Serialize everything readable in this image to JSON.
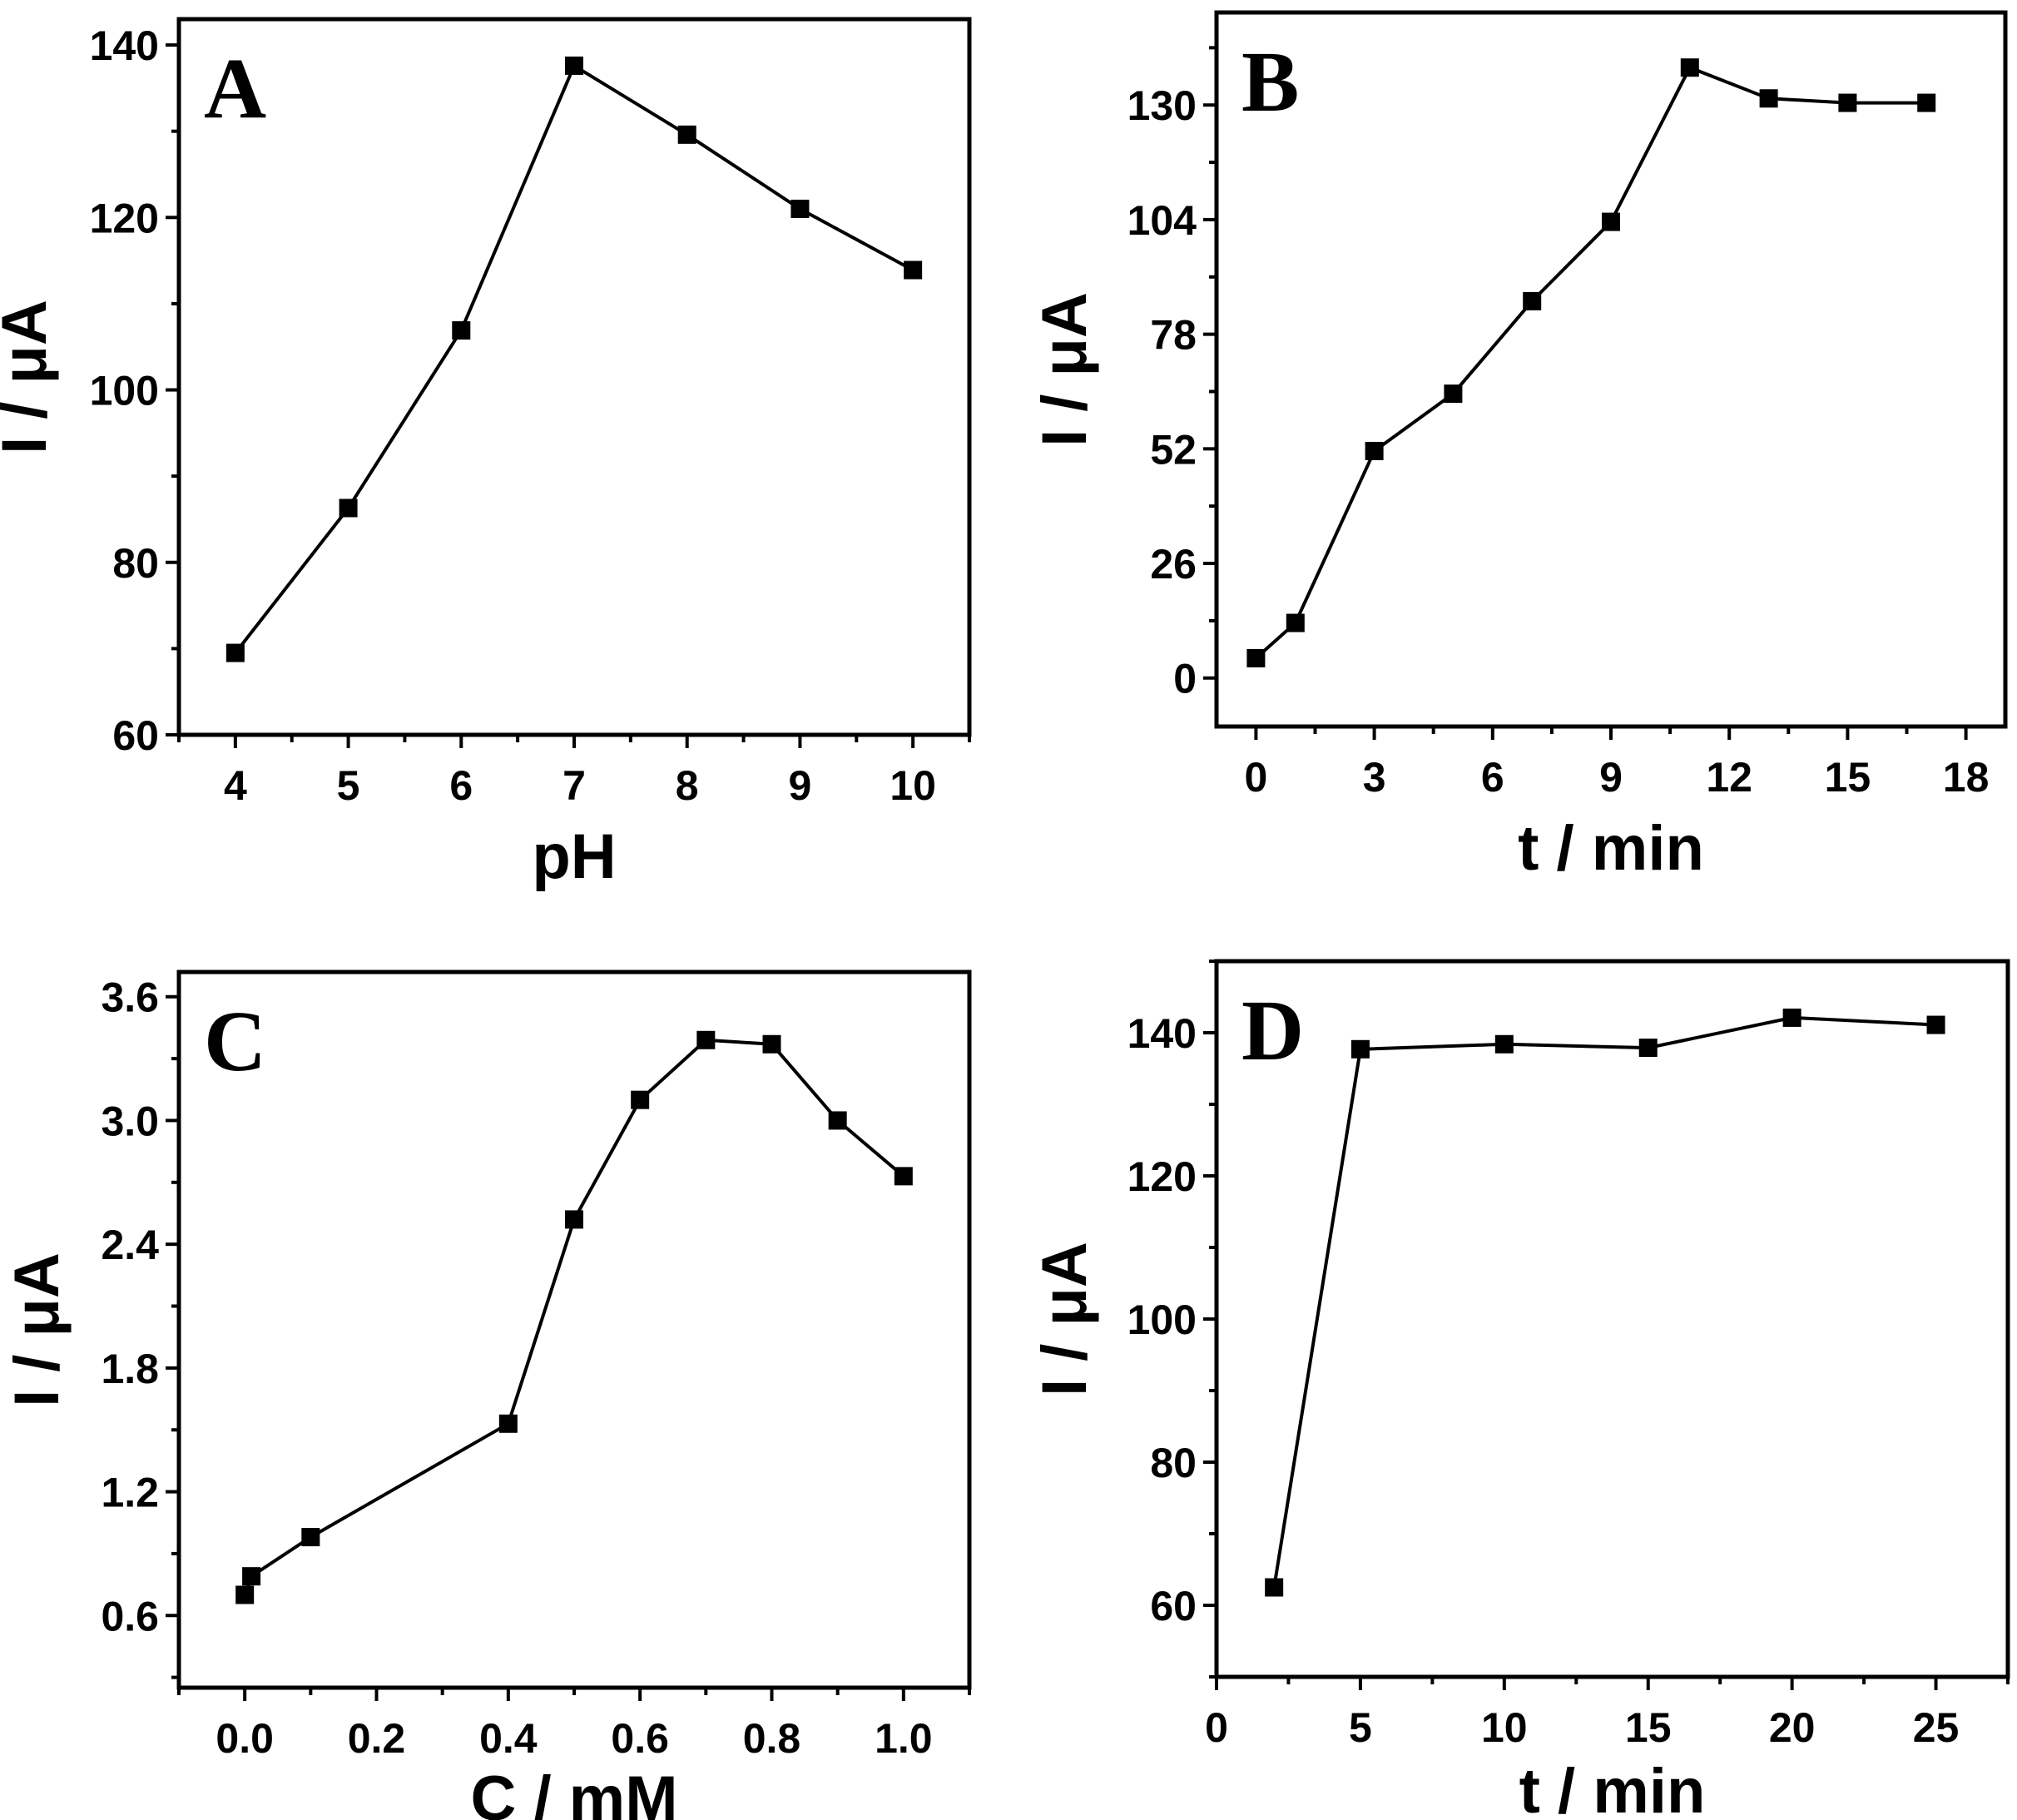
{
  "chart_data": [
    {
      "id": "A",
      "type": "line",
      "panel_label": "A",
      "xlabel": "pH",
      "ylabel": "I / μA",
      "xlim": [
        3.5,
        10.5
      ],
      "ylim": [
        60,
        143
      ],
      "xticks": [
        4,
        5,
        6,
        7,
        8,
        9,
        10
      ],
      "xtick_labels": [
        "4",
        "5",
        "6",
        "7",
        "8",
        "9",
        "10"
      ],
      "yticks": [
        60,
        80,
        100,
        120,
        140
      ],
      "ytick_labels": [
        "60",
        "80",
        "100",
        "120",
        "140"
      ],
      "marker": "square",
      "series": [
        {
          "name": "I",
          "x": [
            4,
            5,
            6,
            7,
            8,
            9,
            10
          ],
          "y": [
            69.5,
            86.3,
            106.9,
            137.6,
            129.6,
            121.0,
            113.9
          ]
        }
      ]
    },
    {
      "id": "B",
      "type": "line",
      "panel_label": "B",
      "xlabel": "t / min",
      "ylabel": "I / μA",
      "xlim": [
        -1,
        19
      ],
      "ylim": [
        -11,
        151
      ],
      "xticks": [
        0,
        3,
        6,
        9,
        12,
        15,
        18
      ],
      "xtick_labels": [
        "0",
        "3",
        "6",
        "9",
        "12",
        "15",
        "18"
      ],
      "yticks": [
        0,
        26,
        52,
        78,
        104,
        130
      ],
      "ytick_labels": [
        "0",
        "26",
        "52",
        "78",
        "104",
        "130"
      ],
      "marker": "square",
      "series": [
        {
          "name": "I",
          "x": [
            0,
            1,
            3,
            5,
            7,
            9,
            11,
            13,
            15,
            17
          ],
          "y": [
            4.5,
            12.5,
            51.5,
            64.5,
            85.5,
            103.5,
            138.5,
            131.5,
            130.5,
            130.5
          ]
        }
      ]
    },
    {
      "id": "C",
      "type": "line",
      "panel_label": "C",
      "xlabel": "C / mM",
      "ylabel": "I / μA",
      "xlim": [
        -0.1,
        1.1
      ],
      "ylim": [
        0.25,
        3.72
      ],
      "xticks": [
        0.0,
        0.2,
        0.4,
        0.6,
        0.8,
        1.0
      ],
      "xtick_labels": [
        "0.0",
        "0.2",
        "0.4",
        "0.6",
        "0.8",
        "1.0"
      ],
      "yticks": [
        0.6,
        1.2,
        1.8,
        2.4,
        3.0,
        3.6
      ],
      "ytick_labels": [
        "0.6",
        "1.2",
        "1.8",
        "2.4",
        "3.0",
        "3.6"
      ],
      "marker": "square",
      "series": [
        {
          "name": "I",
          "x": [
            0.0,
            0.01,
            0.1,
            0.4,
            0.5,
            0.6,
            0.7,
            0.8,
            0.9,
            1.0
          ],
          "y": [
            0.7,
            0.79,
            0.98,
            1.53,
            2.52,
            3.1,
            3.39,
            3.37,
            3.0,
            2.73
          ]
        }
      ]
    },
    {
      "id": "D",
      "type": "line",
      "panel_label": "D",
      "xlabel": "t / min",
      "ylabel": "I / μA",
      "xlim": [
        0,
        27.5
      ],
      "ylim": [
        50,
        150
      ],
      "xticks": [
        0,
        5,
        10,
        15,
        20,
        25
      ],
      "xtick_labels": [
        "0",
        "5",
        "10",
        "15",
        "20",
        "25"
      ],
      "yticks": [
        60,
        80,
        100,
        120,
        140
      ],
      "ytick_labels": [
        "60",
        "80",
        "100",
        "120",
        "140"
      ],
      "marker": "square",
      "series": [
        {
          "name": "I",
          "x": [
            2,
            5,
            10,
            15,
            20,
            25
          ],
          "y": [
            62.5,
            137.7,
            138.4,
            137.9,
            142.1,
            141.1
          ]
        }
      ]
    }
  ]
}
